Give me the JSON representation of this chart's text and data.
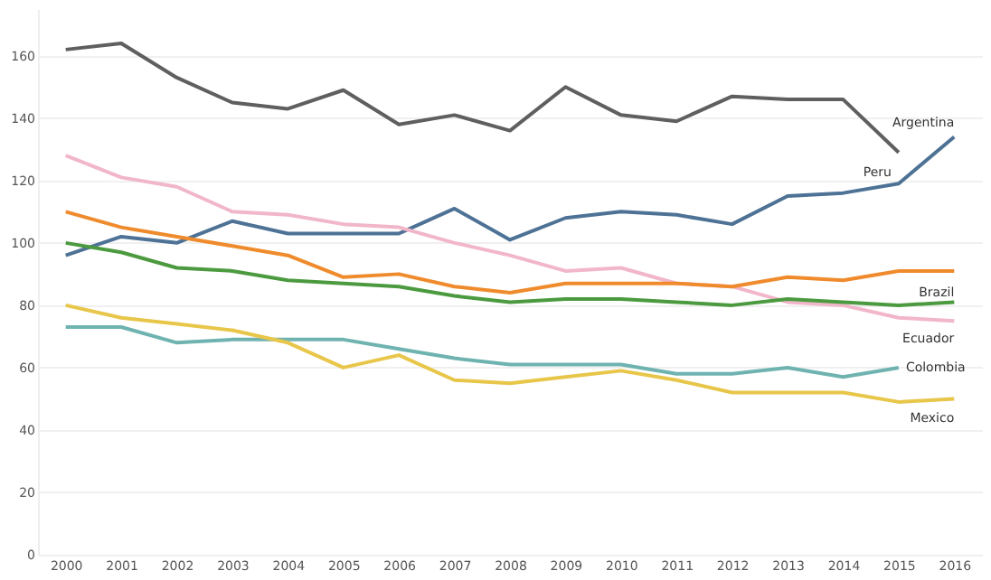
{
  "chart_data": {
    "type": "line",
    "categories": [
      "2000",
      "2001",
      "2002",
      "2003",
      "2004",
      "2005",
      "2006",
      "2007",
      "2008",
      "2009",
      "2010",
      "2011",
      "2012",
      "2013",
      "2014",
      "2015",
      "2016"
    ],
    "series": [
      {
        "name": "Peru",
        "color": "#5f5f5f",
        "values": [
          162,
          164,
          153,
          145,
          143,
          149,
          138,
          141,
          136,
          150,
          141,
          139,
          147,
          146,
          146,
          129,
          null
        ]
      },
      {
        "name": "Argentina",
        "color": "#4e7295",
        "values": [
          96,
          102,
          100,
          107,
          103,
          103,
          103,
          111,
          101,
          108,
          110,
          109,
          106,
          115,
          116,
          119,
          134
        ]
      },
      {
        "name": "Ecuador",
        "color": "#f1b6c9",
        "values": [
          128,
          121,
          118,
          110,
          109,
          106,
          105,
          100,
          96,
          91,
          92,
          87,
          86,
          81,
          80,
          76,
          75
        ]
      },
      {
        "name": "Brazil",
        "color": "#ef8b2c",
        "values": [
          110,
          105,
          102,
          99,
          96,
          89,
          90,
          86,
          84,
          87,
          87,
          87,
          86,
          89,
          88,
          91,
          91
        ]
      },
      {
        "color": "#4c9a3f",
        "values": [
          100,
          97,
          92,
          91,
          88,
          87,
          86,
          83,
          81,
          82,
          82,
          81,
          80,
          82,
          81,
          80,
          81
        ]
      },
      {
        "name": "Colombia",
        "color": "#6fb3b0",
        "values": [
          73,
          73,
          68,
          69,
          69,
          69,
          66,
          63,
          61,
          61,
          61,
          58,
          58,
          60,
          57,
          60,
          null
        ]
      },
      {
        "name": "Mexico",
        "color": "#e8c64a",
        "values": [
          80,
          76,
          74,
          72,
          68,
          60,
          64,
          56,
          55,
          57,
          59,
          56,
          52,
          52,
          52,
          49,
          50
        ]
      }
    ],
    "ylim": [
      0,
      175
    ],
    "yticks": [
      0,
      20,
      40,
      60,
      80,
      100,
      120,
      140,
      160
    ],
    "grid": "y",
    "legend": false,
    "marker": "none",
    "line_style": "solid"
  }
}
